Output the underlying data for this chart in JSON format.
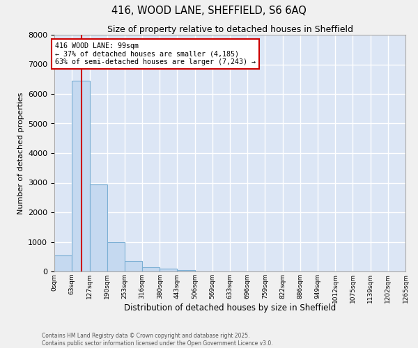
{
  "title1": "416, WOOD LANE, SHEFFIELD, S6 6AQ",
  "title2": "Size of property relative to detached houses in Sheffield",
  "xlabel": "Distribution of detached houses by size in Sheffield",
  "ylabel": "Number of detached properties",
  "bar_color": "#c5d9f0",
  "bar_edge_color": "#7bafd4",
  "background_color": "#dce6f5",
  "fig_color": "#f0f0f0",
  "grid_color": "#ffffff",
  "bin_edges": [
    0,
    63,
    127,
    190,
    253,
    316,
    380,
    443,
    506,
    569,
    633,
    696,
    759,
    822,
    886,
    949,
    1012,
    1075,
    1139,
    1202,
    1265
  ],
  "bar_heights": [
    550,
    6450,
    2950,
    1000,
    350,
    150,
    100,
    50,
    0,
    0,
    0,
    0,
    0,
    0,
    0,
    0,
    0,
    0,
    0,
    0
  ],
  "property_size": 99,
  "vline_color": "#cc0000",
  "annotation_text": "416 WOOD LANE: 99sqm\n← 37% of detached houses are smaller (4,185)\n63% of semi-detached houses are larger (7,243) →",
  "annotation_box_color": "#cc0000",
  "ylim": [
    0,
    8000
  ],
  "yticks": [
    0,
    1000,
    2000,
    3000,
    4000,
    5000,
    6000,
    7000,
    8000
  ],
  "tick_labels": [
    "0sqm",
    "63sqm",
    "127sqm",
    "190sqm",
    "253sqm",
    "316sqm",
    "380sqm",
    "443sqm",
    "506sqm",
    "569sqm",
    "633sqm",
    "696sqm",
    "759sqm",
    "822sqm",
    "886sqm",
    "949sqm",
    "1012sqm",
    "1075sqm",
    "1139sqm",
    "1202sqm",
    "1265sqm"
  ],
  "footnote1": "Contains HM Land Registry data © Crown copyright and database right 2025.",
  "footnote2": "Contains public sector information licensed under the Open Government Licence v3.0."
}
